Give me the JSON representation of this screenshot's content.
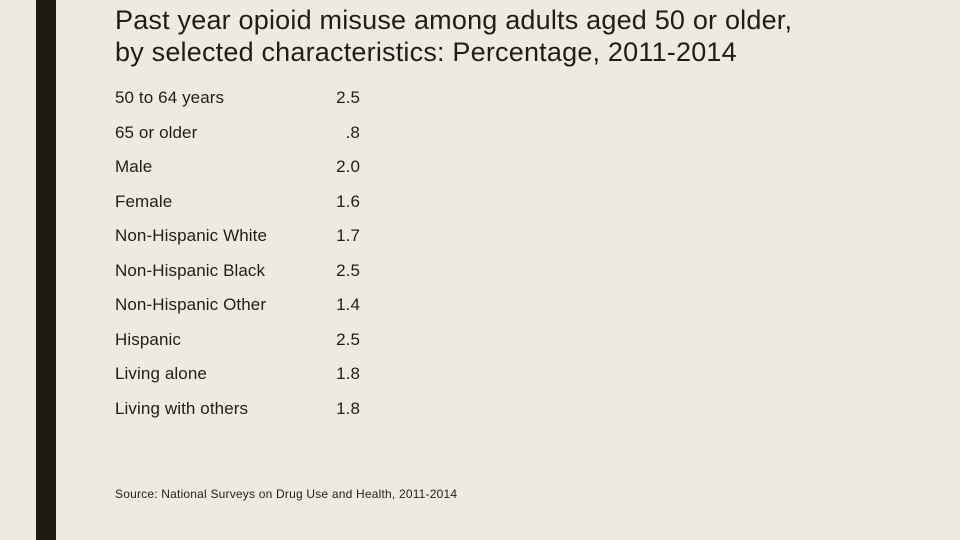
{
  "slide": {
    "title_lines": [
      "Past year opioid misuse among adults aged 50 or older,",
      "by selected characteristics: Percentage, 2011-2014"
    ],
    "source": "Source: National Surveys on Drug Use and Health, 2011-2014"
  },
  "rows": [
    {
      "label": "50 to 64 years",
      "value": "2.5"
    },
    {
      "label": "65 or older",
      "value": ".8"
    },
    {
      "label": "Male",
      "value": "2.0"
    },
    {
      "label": "Female",
      "value": "1.6"
    },
    {
      "label": "Non-Hispanic White",
      "value": "1.7"
    },
    {
      "label": "Non-Hispanic Black",
      "value": "2.5"
    },
    {
      "label": "Non-Hispanic Other",
      "value": "1.4"
    },
    {
      "label": "Hispanic",
      "value": "2.5"
    },
    {
      "label": "Living alone",
      "value": "1.8"
    },
    {
      "label": "Living with others",
      "value": "1.8"
    }
  ],
  "chart_data": {
    "type": "table",
    "title": "Past year opioid misuse among adults aged 50 or older, by selected characteristics: Percentage, 2011-2014",
    "categories": [
      "50 to 64 years",
      "65 or older",
      "Male",
      "Female",
      "Non-Hispanic White",
      "Non-Hispanic Black",
      "Non-Hispanic Other",
      "Hispanic",
      "Living alone",
      "Living with others"
    ],
    "values": [
      2.5,
      0.8,
      2.0,
      1.6,
      1.7,
      2.5,
      1.4,
      2.5,
      1.8,
      1.8
    ],
    "value_labels": [
      "2.5",
      ".8",
      "2.0",
      "1.6",
      "1.7",
      "2.5",
      "1.4",
      "2.5",
      "1.8",
      "1.8"
    ],
    "unit": "percent",
    "source": "Source: National Surveys on Drug Use and Health, 2011-2014"
  },
  "colors": {
    "background": "#EDEAE1",
    "accent_bar": "#1D1B10",
    "text": "#1F1E16"
  }
}
